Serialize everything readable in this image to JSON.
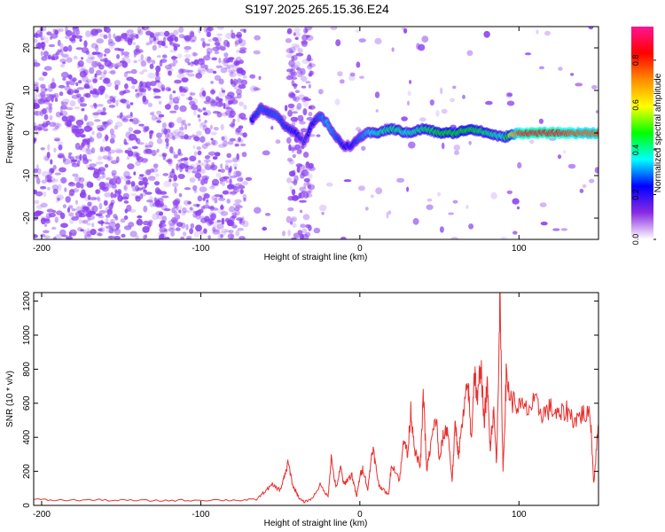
{
  "title": "S197.2025.265.15.36.E24",
  "colors": {
    "snr_line": "#e8302f",
    "frame": "#000000",
    "spectrogram_dots": "#8a3ff0",
    "colormap": [
      "#ffffff",
      "#8a2be2",
      "#0000ff",
      "#00ffff",
      "#00ff00",
      "#ffff00",
      "#ff8c00",
      "#ff0000",
      "#ff1493"
    ]
  },
  "chart_data": [
    {
      "type": "heatmap",
      "xlabel": "Height of straight line (km)",
      "ylabel": "Frequency (Hz)",
      "xlim": [
        -205,
        150
      ],
      "ylim": [
        -25,
        25
      ],
      "x_ticks": [
        -200,
        -100,
        0,
        100
      ],
      "y_ticks": [
        -20,
        -10,
        0,
        10,
        20
      ],
      "noise_region_x": [
        -205,
        -72
      ],
      "noise_band_x": [
        -45,
        -30
      ],
      "ridge": {
        "x": [
          -68,
          -62,
          -58,
          -52,
          -48,
          -40,
          -35,
          -30,
          -25,
          -20,
          -15,
          -10,
          -5,
          0,
          5,
          10,
          20,
          30,
          40,
          50,
          60,
          70,
          80,
          90,
          100,
          110,
          120,
          130,
          140,
          150
        ],
        "freq": [
          3,
          6,
          5,
          4,
          2,
          0,
          -2,
          2,
          4,
          2,
          -1,
          -3,
          -3,
          -1,
          0,
          0,
          1,
          0,
          1,
          0,
          0,
          1,
          0,
          -1,
          0,
          0,
          0,
          0,
          0,
          0
        ],
        "amplitude": [
          0.25,
          0.3,
          0.28,
          0.3,
          0.28,
          0.25,
          0.2,
          0.25,
          0.3,
          0.35,
          0.3,
          0.25,
          0.25,
          0.3,
          0.35,
          0.4,
          0.45,
          0.4,
          0.45,
          0.5,
          0.5,
          0.5,
          0.45,
          0.4,
          0.85,
          0.9,
          0.9,
          0.85,
          0.8,
          0.8
        ]
      }
    },
    {
      "type": "colorbar",
      "label": "Normalized spectral amplitude",
      "range": [
        0.0,
        0.95
      ],
      "ticks": [
        "0.0",
        "0.2",
        "0.4",
        "0.6",
        "0.8"
      ],
      "tick_values": [
        0.0,
        0.2,
        0.4,
        0.6,
        0.8
      ]
    },
    {
      "type": "line",
      "xlabel": "Height of straight line (km)",
      "ylabel": "SNR (10 * v/v)",
      "xlim": [
        -205,
        150
      ],
      "ylim": [
        0,
        1250
      ],
      "x_ticks": [
        -200,
        -100,
        0,
        100
      ],
      "y_ticks": [
        0,
        200,
        400,
        600,
        800,
        1000,
        1200
      ],
      "series": [
        {
          "x": [
            -205,
            -190,
            -170,
            -150,
            -130,
            -110,
            -90,
            -75,
            -65,
            -60,
            -55,
            -50,
            -48,
            -45,
            -42,
            -40,
            -38,
            -35,
            -30,
            -25,
            -20,
            -18,
            -15,
            -12,
            -10,
            -8,
            -5,
            -2,
            0,
            2,
            5,
            8,
            10,
            12,
            15,
            18,
            20,
            25,
            28,
            30,
            32,
            35,
            38,
            40,
            42,
            45,
            48,
            50,
            52,
            55,
            58,
            60,
            62,
            65,
            68,
            70,
            72,
            74,
            76,
            78,
            80,
            82,
            84,
            86,
            88,
            90,
            92,
            95,
            100,
            105,
            110,
            115,
            120,
            125,
            130,
            135,
            140,
            145,
            147,
            150
          ],
          "y": [
            35,
            30,
            32,
            30,
            28,
            30,
            32,
            30,
            35,
            80,
            120,
            90,
            150,
            250,
            110,
            80,
            40,
            20,
            40,
            120,
            50,
            280,
            100,
            220,
            120,
            150,
            180,
            50,
            170,
            220,
            90,
            350,
            230,
            120,
            90,
            60,
            250,
            150,
            420,
            280,
            560,
            300,
            230,
            660,
            200,
            380,
            520,
            250,
            390,
            460,
            150,
            480,
            300,
            520,
            720,
            380,
            800,
            600,
            860,
            480,
            700,
            350,
            560,
            250,
            1230,
            200,
            750,
            620,
            580,
            560,
            600,
            540,
            570,
            520,
            560,
            500,
            540,
            520,
            130,
            480
          ]
        }
      ]
    }
  ]
}
